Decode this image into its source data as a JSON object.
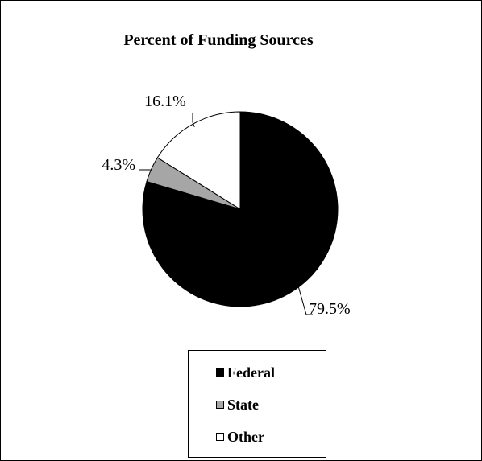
{
  "chart_data": {
    "type": "pie",
    "title": "Percent of Funding  Sources",
    "slices": [
      {
        "name": "Federal",
        "value": 79.5,
        "label": "79.5%",
        "color": "#000000"
      },
      {
        "name": "State",
        "value": 4.3,
        "label": "4.3%",
        "color": "#a6a6a6"
      },
      {
        "name": "Other",
        "value": 16.1,
        "label": "16.1%",
        "color": "#ffffff"
      }
    ],
    "legend": {
      "placement": "bottom",
      "entries": [
        "Federal",
        "State",
        "Other"
      ]
    }
  }
}
